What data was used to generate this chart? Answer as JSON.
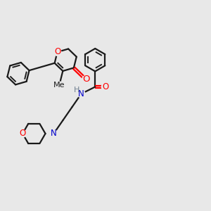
{
  "bg_color": "#e8e8e8",
  "bond_color": "#1a1a1a",
  "bond_width": 1.6,
  "atom_colors": {
    "O": "#ff0000",
    "N": "#0000cc",
    "C": "#1a1a1a",
    "H": "#708090"
  },
  "font_size_atom": 8.5,
  "figsize": [
    3.0,
    3.0
  ],
  "dpi": 100
}
